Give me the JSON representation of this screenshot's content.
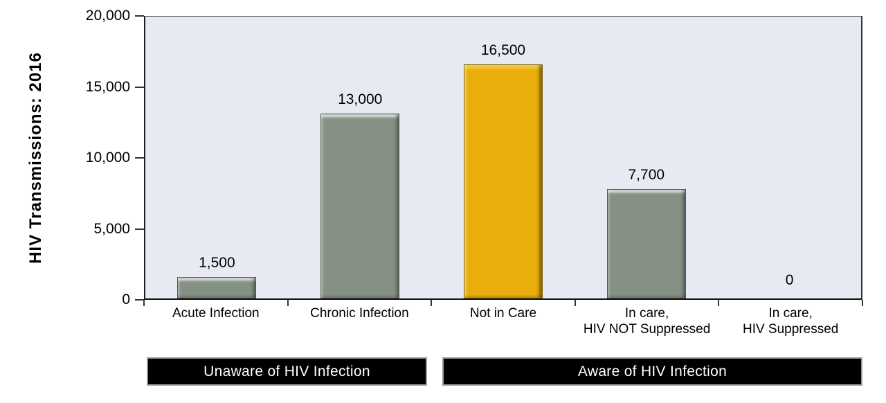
{
  "chart_data": {
    "type": "bar",
    "title": "",
    "ylabel": "HIV Transmissions: 2016",
    "xlabel": "",
    "ylim": [
      0,
      20000
    ],
    "ytick_step": 5000,
    "yticks_top_to_bottom": [
      "20,000",
      "15,000",
      "10,000",
      "5,000",
      "0"
    ],
    "categories": [
      [
        "Acute Infection"
      ],
      [
        "Chronic Infection"
      ],
      [
        "Not in Care"
      ],
      [
        "In care,",
        "HIV NOT Suppressed"
      ],
      [
        "In care,",
        "HIV Suppressed"
      ]
    ],
    "values": [
      1500,
      13000,
      16500,
      7700,
      0
    ],
    "value_labels": [
      "1,500",
      "13,000",
      "16,500",
      "7,700",
      "0"
    ],
    "highlight_index": 2,
    "grid": false,
    "legend_position": "none",
    "colors": {
      "bar_default": "#859185",
      "bar_highlight": "#E9AE0B",
      "plot_background": "#E7EAF2",
      "axis": "#1f1f1f",
      "banner_background": "#000000",
      "banner_border": "#9c9c9c",
      "banner_text": "#ffffff",
      "text": "#000000"
    },
    "group_bands": [
      {
        "label": "Unaware of HIV Infection",
        "categories": [
          "Acute Infection",
          "Chronic Infection"
        ]
      },
      {
        "label": "Aware of HIV Infection",
        "categories": [
          "Not in Care",
          "In care, HIV NOT Suppressed",
          "In care, HIV Suppressed"
        ]
      }
    ]
  }
}
